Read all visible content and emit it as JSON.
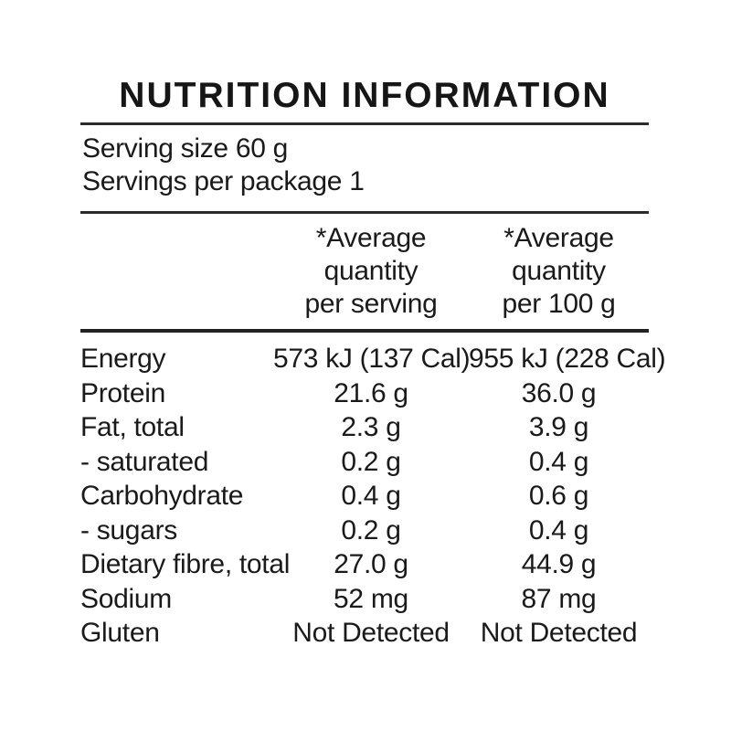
{
  "title": "NUTRITION INFORMATION",
  "serving_info": {
    "serving_size": "Serving size 60 g",
    "servings_per_package": "Servings per package 1"
  },
  "columns": {
    "per_serving": [
      "*Average",
      "quantity",
      "per serving"
    ],
    "per_100g": [
      "*Average",
      "quantity",
      "per 100 g"
    ]
  },
  "rows": [
    {
      "label": "Energy",
      "per_serving": "573 kJ (137 Cal)",
      "per_100g": "955 kJ (228 Cal)"
    },
    {
      "label": "Protein",
      "per_serving": "21.6 g",
      "per_100g": "36.0 g"
    },
    {
      "label": "Fat, total",
      "per_serving": "2.3 g",
      "per_100g": "3.9 g"
    },
    {
      "label": "- saturated",
      "per_serving": "0.2 g",
      "per_100g": "0.4 g"
    },
    {
      "label": "Carbohydrate",
      "per_serving": "0.4 g",
      "per_100g": "0.6 g"
    },
    {
      "label": "- sugars",
      "per_serving": "0.2 g",
      "per_100g": "0.4 g"
    },
    {
      "label": "Dietary fibre, total",
      "per_serving": "27.0 g",
      "per_100g": "44.9 g"
    },
    {
      "label": "Sodium",
      "per_serving": "52 mg",
      "per_100g": "87 mg"
    },
    {
      "label": "Gluten",
      "per_serving": "Not Detected",
      "per_100g": "Not Detected"
    }
  ],
  "colors": {
    "background": "#ffffff",
    "text": "#1a1a1a",
    "rule": "#2b2b2b"
  }
}
